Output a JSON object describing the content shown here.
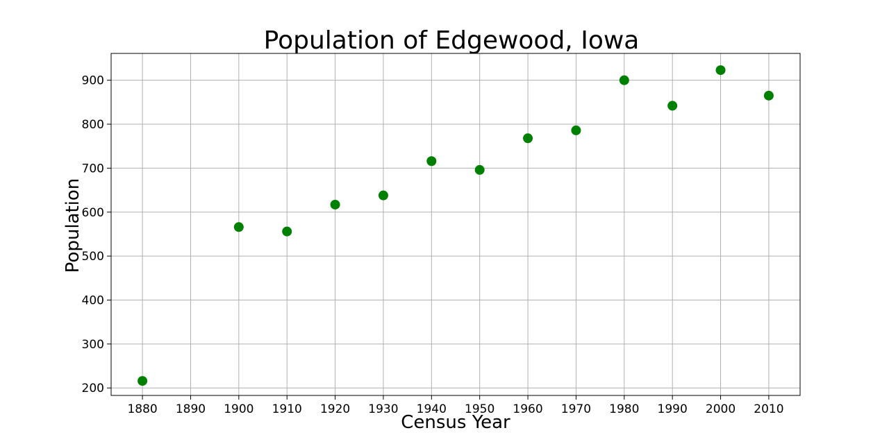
{
  "chart_data": {
    "type": "scatter",
    "title": "Population of Edgewood, Iowa",
    "xlabel": "Census Year",
    "ylabel": "Population",
    "x_ticks": [
      1880,
      1890,
      1900,
      1910,
      1920,
      1930,
      1940,
      1950,
      1960,
      1970,
      1980,
      1990,
      2000,
      2010
    ],
    "y_ticks": [
      200,
      300,
      400,
      500,
      600,
      700,
      800,
      900
    ],
    "xlim": [
      1873.5,
      2016.5
    ],
    "ylim": [
      183,
      961
    ],
    "grid": true,
    "series": [
      {
        "x": [
          1880,
          1900,
          1910,
          1920,
          1930,
          1940,
          1950,
          1960,
          1970,
          1980,
          1990,
          2000,
          2010
        ],
        "y": [
          216,
          566,
          556,
          617,
          638,
          716,
          696,
          768,
          786,
          900,
          842,
          923,
          865
        ],
        "color": "#008000"
      }
    ]
  }
}
